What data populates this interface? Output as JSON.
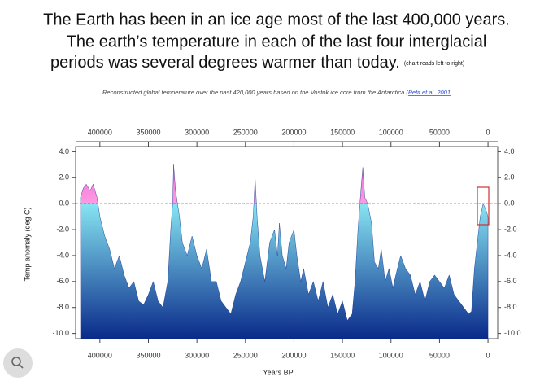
{
  "chart_data": {
    "type": "area",
    "title_lines": [
      "The Earth has been in an ice age most of the last 400,000 years.",
      "The earth’s temperature in each of the last four interglacial",
      "periods was several degrees warmer than today."
    ],
    "note": "(chart reads left to right)",
    "subtitle": "Reconstructed global temperature over the past 420,000 years based on the Vostok ice core from the Antarctica (",
    "source": "Petit et al. 2001",
    "xlabel": "Years BP",
    "ylabel": "Temp anomaly (deg C)",
    "color": "#0a2a8a",
    "xlim": [
      425000,
      -10000
    ],
    "xticks": [
      400000,
      350000,
      300000,
      250000,
      200000,
      150000,
      100000,
      50000,
      0
    ],
    "ylim": [
      -10.4,
      4.4
    ],
    "yticks": [
      {
        "value": 4,
        "label": "4.0"
      },
      {
        "value": 2,
        "label": "2.0"
      },
      {
        "value": 0,
        "label": "0.0"
      },
      {
        "value": -2,
        "label": "-2.0"
      },
      {
        "value": -4,
        "label": "-4.0"
      },
      {
        "value": -6,
        "label": "-6.0"
      },
      {
        "value": -8,
        "label": "-8.0"
      },
      {
        "value": -10,
        "label": "-10.0"
      }
    ],
    "x": [
      420000,
      417000,
      414000,
      410000,
      407000,
      403000,
      400000,
      395000,
      390000,
      385000,
      380000,
      375000,
      370000,
      365000,
      360000,
      355000,
      350000,
      345000,
      340000,
      335000,
      330000,
      327000,
      325000,
      324000,
      322000,
      318000,
      315000,
      310000,
      305000,
      300000,
      295000,
      290000,
      285000,
      280000,
      275000,
      270000,
      265000,
      260000,
      255000,
      250000,
      245000,
      242000,
      240000,
      238000,
      235000,
      230000,
      225000,
      220000,
      217000,
      215000,
      212000,
      208000,
      205000,
      200000,
      197000,
      193000,
      190000,
      185000,
      180000,
      175000,
      170000,
      165000,
      160000,
      155000,
      150000,
      145000,
      140000,
      137000,
      134000,
      131000,
      129000,
      127000,
      124000,
      120000,
      117000,
      113000,
      110000,
      106000,
      102000,
      98000,
      95000,
      90000,
      85000,
      80000,
      75000,
      70000,
      65000,
      60000,
      55000,
      50000,
      45000,
      40000,
      35000,
      30000,
      25000,
      20000,
      17000,
      14000,
      11000,
      8000,
      5000,
      2000,
      0
    ],
    "values": [
      0.5,
      1.2,
      1.5,
      1.0,
      1.5,
      0.5,
      -1,
      -2.5,
      -3.5,
      -5,
      -4,
      -5.5,
      -6.5,
      -6,
      -7.5,
      -7.8,
      -7,
      -6,
      -7.5,
      -8,
      -6,
      -2,
      0,
      3.0,
      1,
      -1,
      -3,
      -4,
      -2.5,
      -4,
      -5,
      -3.5,
      -6,
      -6,
      -7.5,
      -8,
      -8.5,
      -7,
      -6,
      -4.5,
      -3,
      -1,
      2.0,
      -1,
      -4,
      -6,
      -3,
      -2,
      -4,
      -1.5,
      -4,
      -5,
      -3,
      -2,
      -4,
      -6,
      -5,
      -7,
      -6,
      -7.5,
      -6,
      -8,
      -7,
      -8.5,
      -7.5,
      -9,
      -8.5,
      -6,
      -2,
      1,
      2.8,
      0.5,
      0,
      -1.5,
      -4.5,
      -5,
      -3.5,
      -6,
      -5,
      -6.5,
      -5.5,
      -4,
      -5,
      -5.5,
      -7,
      -6,
      -7.5,
      -6,
      -5.5,
      -6,
      -6.5,
      -5.5,
      -7,
      -7.5,
      -8,
      -8.5,
      -8.3,
      -5,
      -3,
      -1,
      0,
      -0.5,
      -1
    ]
  }
}
